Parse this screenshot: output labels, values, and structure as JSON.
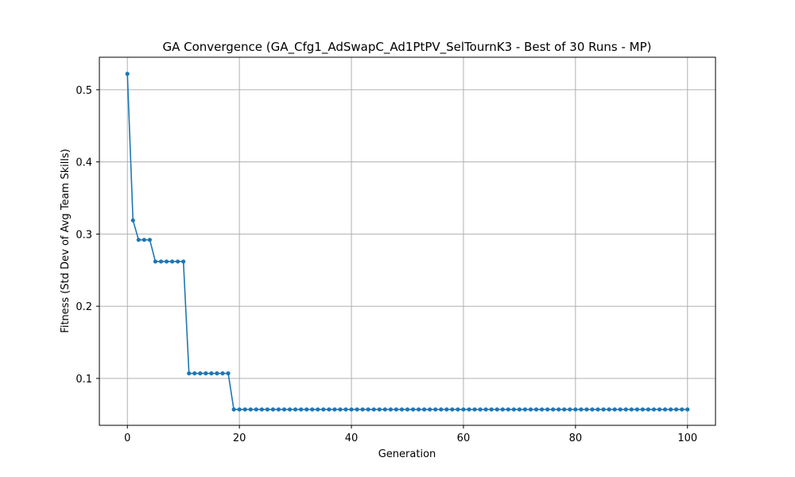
{
  "chart_data": {
    "type": "line",
    "title": "GA Convergence (GA_Cfg1_AdSwapC_Ad1PtPV_SelTournK3 - Best of 30 Runs - MP)",
    "xlabel": "Generation",
    "ylabel": "Fitness (Std Dev of Avg Team Skills)",
    "xlim": [
      -5,
      105
    ],
    "ylim": [
      0.035,
      0.545
    ],
    "xticks": [
      0,
      20,
      40,
      60,
      80,
      100
    ],
    "yticks": [
      0.1,
      0.2,
      0.3,
      0.4,
      0.5
    ],
    "xtick_labels": [
      "0",
      "20",
      "40",
      "60",
      "80",
      "100"
    ],
    "ytick_labels": [
      "0.1",
      "0.2",
      "0.3",
      "0.4",
      "0.5"
    ],
    "grid": true,
    "line_color": "#1f77b4",
    "series": [
      {
        "x": [
          0,
          1,
          2,
          3,
          4,
          5,
          6,
          7,
          8,
          9,
          10,
          11,
          12,
          13,
          14,
          15,
          16,
          17,
          18,
          19,
          20,
          21,
          22,
          23,
          24,
          25,
          26,
          27,
          28,
          29,
          30,
          31,
          32,
          33,
          34,
          35,
          36,
          37,
          38,
          39,
          40,
          41,
          42,
          43,
          44,
          45,
          46,
          47,
          48,
          49,
          50,
          51,
          52,
          53,
          54,
          55,
          56,
          57,
          58,
          59,
          60,
          61,
          62,
          63,
          64,
          65,
          66,
          67,
          68,
          69,
          70,
          71,
          72,
          73,
          74,
          75,
          76,
          77,
          78,
          79,
          80,
          81,
          82,
          83,
          84,
          85,
          86,
          87,
          88,
          89,
          90,
          91,
          92,
          93,
          94,
          95,
          96,
          97,
          98,
          99,
          100
        ],
        "values": [
          0.522,
          0.319,
          0.292,
          0.292,
          0.292,
          0.262,
          0.262,
          0.262,
          0.262,
          0.262,
          0.262,
          0.107,
          0.107,
          0.107,
          0.107,
          0.107,
          0.107,
          0.107,
          0.107,
          0.057,
          0.057,
          0.057,
          0.057,
          0.057,
          0.057,
          0.057,
          0.057,
          0.057,
          0.057,
          0.057,
          0.057,
          0.057,
          0.057,
          0.057,
          0.057,
          0.057,
          0.057,
          0.057,
          0.057,
          0.057,
          0.057,
          0.057,
          0.057,
          0.057,
          0.057,
          0.057,
          0.057,
          0.057,
          0.057,
          0.057,
          0.057,
          0.057,
          0.057,
          0.057,
          0.057,
          0.057,
          0.057,
          0.057,
          0.057,
          0.057,
          0.057,
          0.057,
          0.057,
          0.057,
          0.057,
          0.057,
          0.057,
          0.057,
          0.057,
          0.057,
          0.057,
          0.057,
          0.057,
          0.057,
          0.057,
          0.057,
          0.057,
          0.057,
          0.057,
          0.057,
          0.057,
          0.057,
          0.057,
          0.057,
          0.057,
          0.057,
          0.057,
          0.057,
          0.057,
          0.057,
          0.057,
          0.057,
          0.057,
          0.057,
          0.057,
          0.057,
          0.057,
          0.057,
          0.057,
          0.057,
          0.057
        ]
      }
    ]
  }
}
